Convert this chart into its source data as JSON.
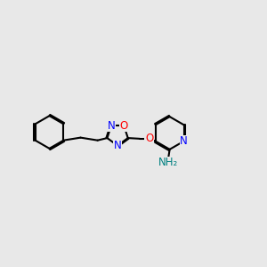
{
  "background_color": "#e8e8e8",
  "bond_color": "#000000",
  "bond_width": 1.5,
  "atom_colors": {
    "N": "#0000ff",
    "O": "#ff0000",
    "NH2": "#008080",
    "C": "#000000"
  },
  "font_size_atoms": 9,
  "font_size_labels": 9
}
